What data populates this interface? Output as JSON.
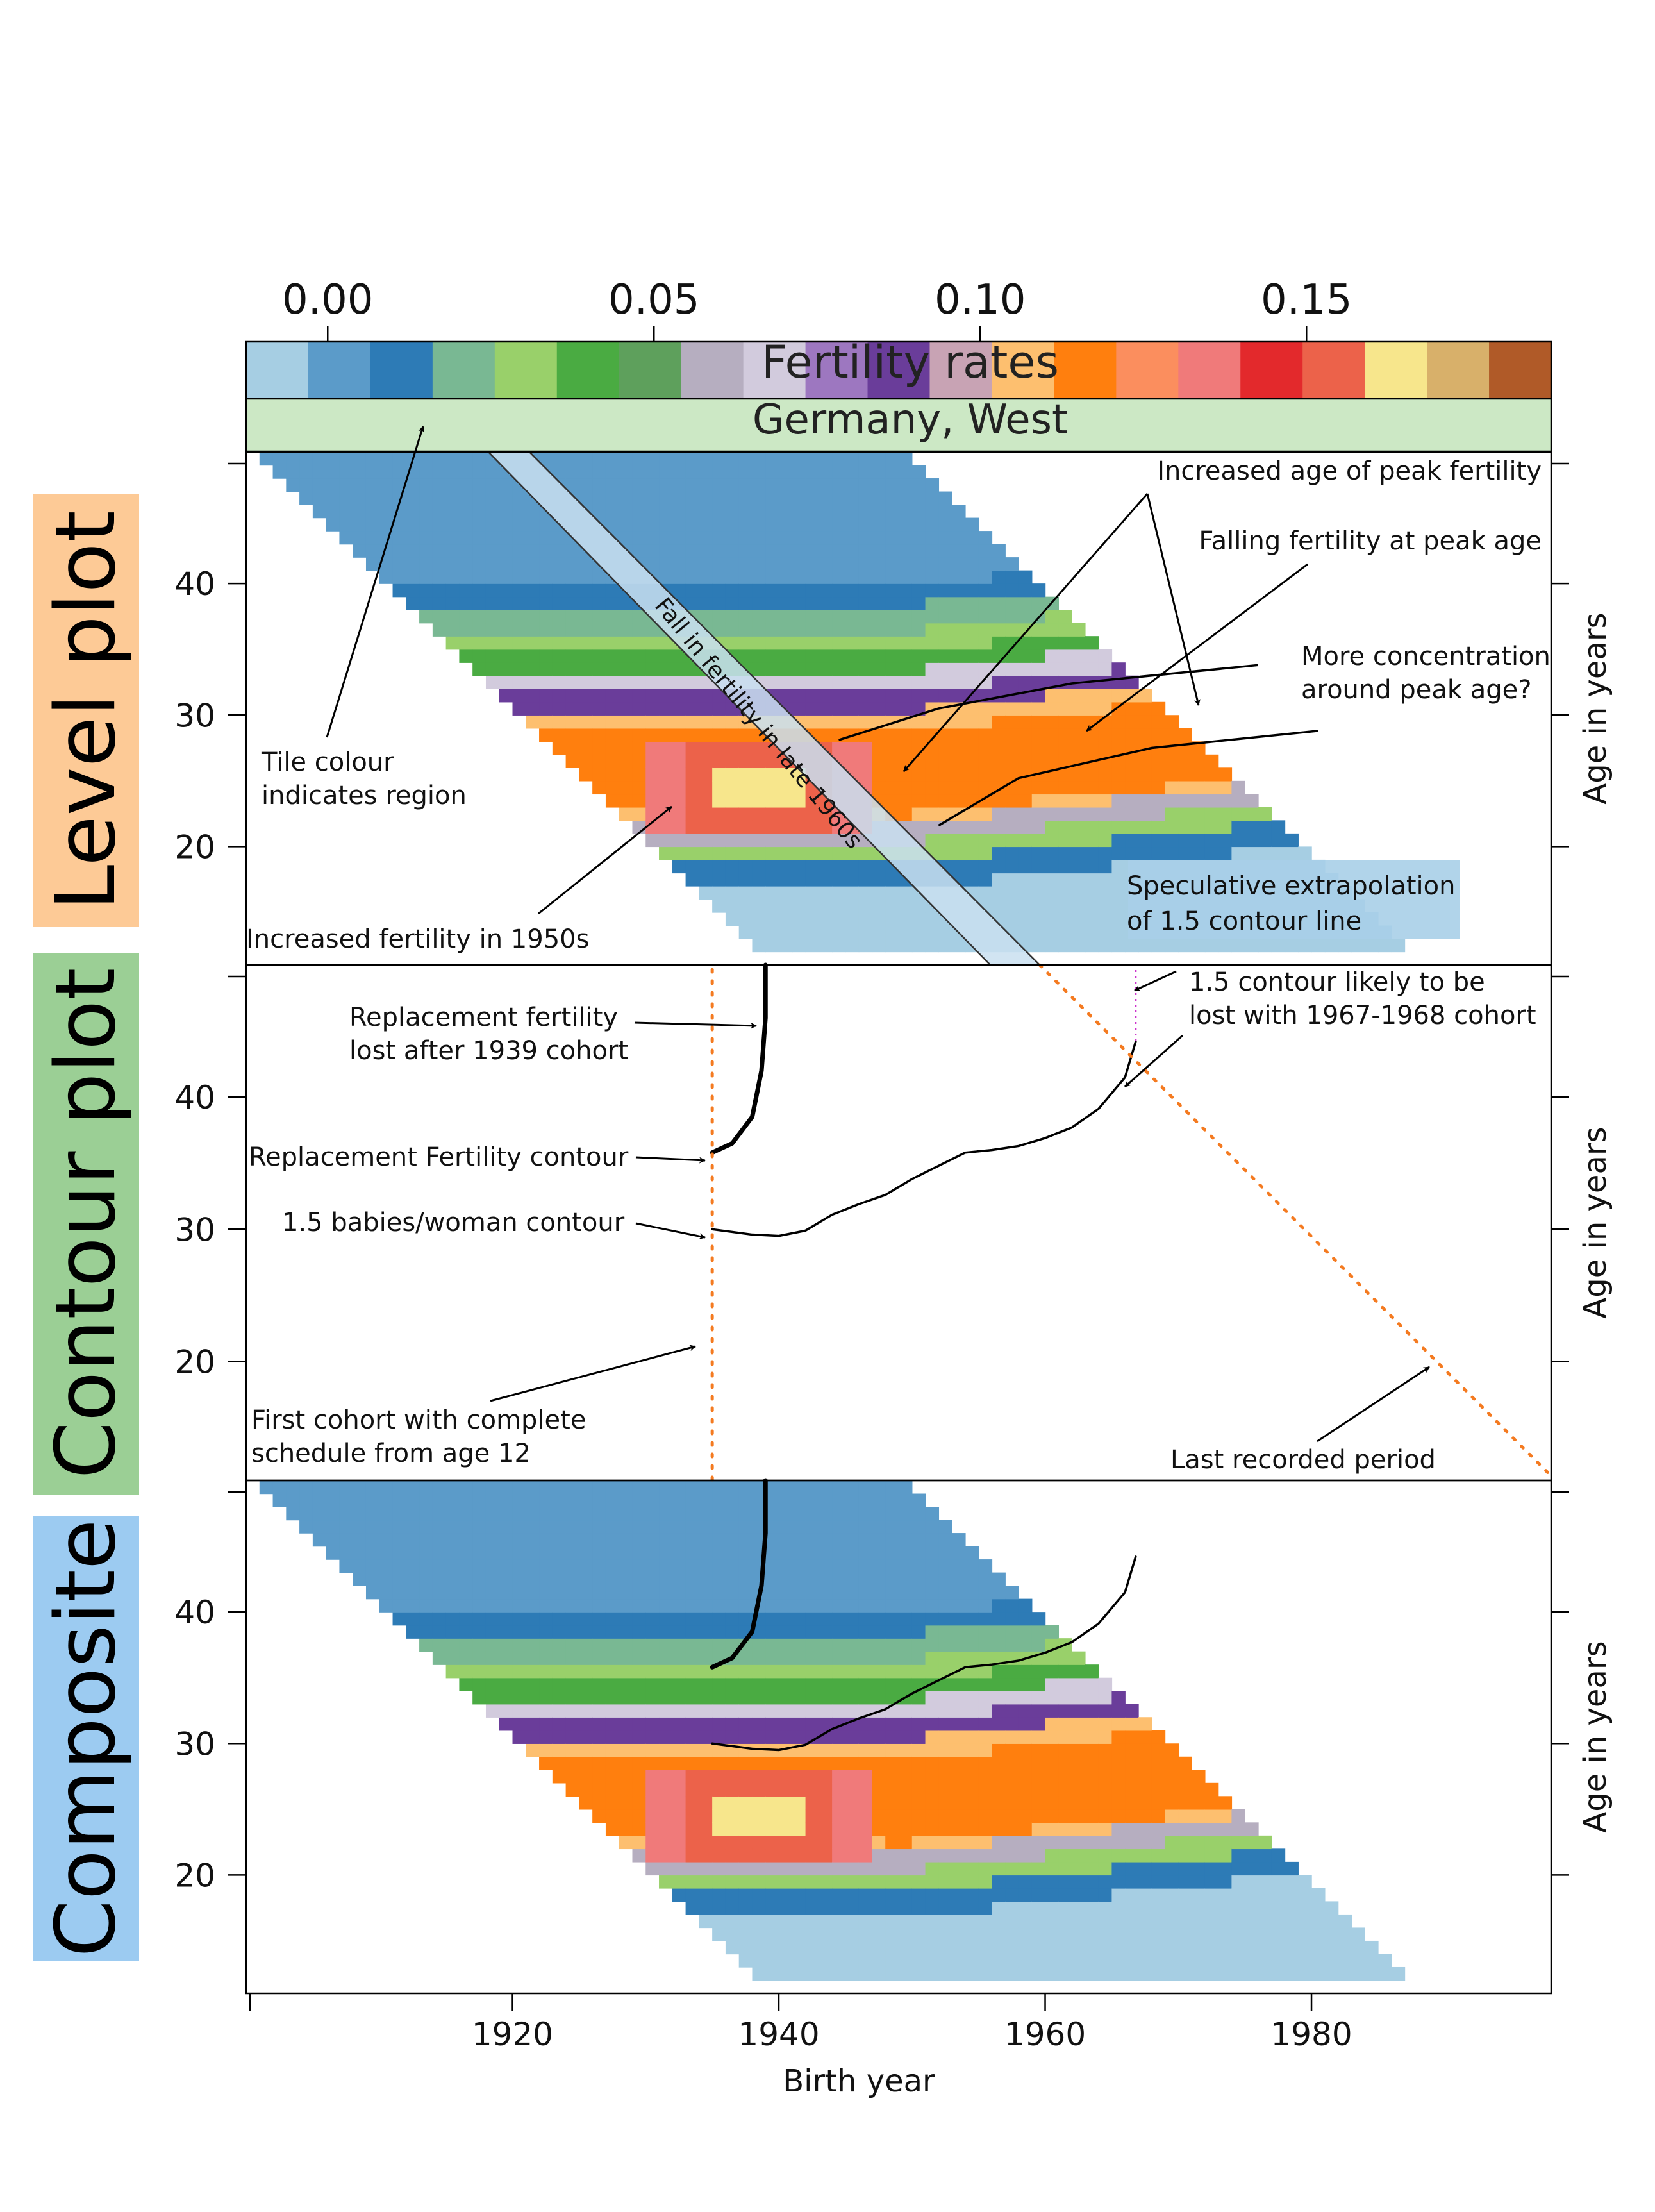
{
  "chart_data": {
    "type": "heatmap",
    "title": "Fertility rates",
    "strip_label": "Germany, West",
    "xlabel": "Birth year",
    "ylabel": "Age in years",
    "xlim": [
      1900,
      1998
    ],
    "ylim": [
      11,
      50
    ],
    "x_ticks": [
      1920,
      1940,
      1960,
      1980
    ],
    "y_ticks": [
      20,
      30,
      40
    ],
    "colorbar": {
      "range": [
        -0.0125,
        0.1875
      ],
      "tick_values": [
        0.0,
        0.05,
        0.1,
        0.15
      ],
      "tick_labels": [
        "0.00",
        "0.05",
        "0.10",
        "0.15"
      ],
      "colors": [
        "#a6cee3",
        "#5b9bc9",
        "#2d7bb6",
        "#79b893",
        "#99d06a",
        "#4aab42",
        "#5ea05c",
        "#b6aec0",
        "#d2cbdd",
        "#9d77c0",
        "#6a3d9a",
        "#c8a3b4",
        "#fdbf6f",
        "#ff7f0e",
        "#fb8e5e",
        "#f07a7a",
        "#e3292c",
        "#ec624a",
        "#f7e68c",
        "#d8b06a",
        "#b05a28"
      ]
    },
    "panels": [
      {
        "name": "Level plot",
        "label_color": "#fdca96",
        "annotations": [
          "Increased age of peak fertility",
          "Falling fertility at peak age",
          "More concentration\naround peak age?",
          "Tile colour\nindicates region",
          "Fall in fertility in late 1960s",
          "Speculative extrapolation\nof 1.5 contour line",
          "Increased fertility in 1950s"
        ]
      },
      {
        "name": "Contour plot",
        "label_color": "#9bcf95",
        "annotations": [
          "Replacement fertility\nlost after 1939 cohort",
          "1.5 contour likely to be\nlost with 1967-1968 cohort",
          "Replacement Fertility contour",
          "1.5 babies/woman contour",
          "First cohort with complete\nschedule from age 12",
          "Last recorded period"
        ],
        "contours": [
          {
            "level": 2.1,
            "x": [
              1935,
              1936.5,
              1938,
              1938.7,
              1939,
              1939
            ],
            "y": [
              35.8,
              36.5,
              38.5,
              42,
              46,
              50
            ]
          },
          {
            "level": 1.5,
            "x": [
              1935,
              1938,
              1940,
              1942,
              1944,
              1946,
              1948,
              1950,
              1952,
              1954,
              1956,
              1958,
              1960,
              1962,
              1964,
              1966,
              1966.8
            ],
            "y": [
              30.0,
              29.6,
              29.5,
              29.9,
              31.1,
              31.9,
              32.6,
              33.8,
              34.8,
              35.8,
              36.0,
              36.3,
              36.9,
              37.7,
              39.1,
              41.5,
              44.2
            ]
          }
        ]
      },
      {
        "name": "Composite",
        "label_color": "#9ccbf1",
        "annotations": []
      }
    ]
  }
}
